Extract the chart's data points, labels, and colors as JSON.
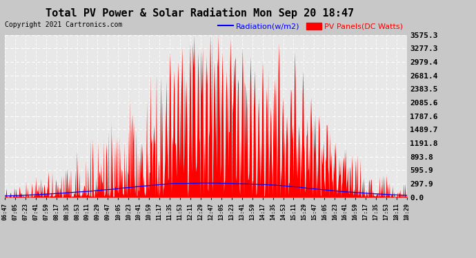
{
  "title": "Total PV Power & Solar Radiation Mon Sep 20 18:47",
  "copyright": "Copyright 2021 Cartronics.com",
  "legend_radiation": "Radiation(w/m2)",
  "legend_pv": "PV Panels(DC Watts)",
  "radiation_color": "blue",
  "pv_color": "red",
  "background_color": "#c8c8c8",
  "plot_bg_color": "#e8e8e8",
  "grid_color": "white",
  "yticks": [
    0.0,
    297.9,
    595.9,
    893.8,
    1191.8,
    1489.7,
    1787.6,
    2085.6,
    2383.5,
    2681.4,
    2979.4,
    3277.3,
    3575.3
  ],
  "ymax": 3575.3,
  "ymin": 0.0,
  "x_labels": [
    "06:47",
    "07:05",
    "07:23",
    "07:41",
    "07:59",
    "08:17",
    "08:35",
    "08:53",
    "09:11",
    "09:29",
    "09:47",
    "10:05",
    "10:23",
    "10:41",
    "10:59",
    "11:17",
    "11:35",
    "11:53",
    "12:11",
    "12:29",
    "12:47",
    "13:05",
    "13:23",
    "13:41",
    "13:59",
    "14:17",
    "14:35",
    "14:53",
    "15:11",
    "15:29",
    "15:47",
    "16:05",
    "16:23",
    "16:41",
    "16:59",
    "17:17",
    "17:35",
    "17:53",
    "18:11",
    "18:29"
  ],
  "title_fontsize": 11,
  "copyright_fontsize": 7,
  "legend_fontsize": 8,
  "ytick_fontsize": 8,
  "xtick_fontsize": 6
}
